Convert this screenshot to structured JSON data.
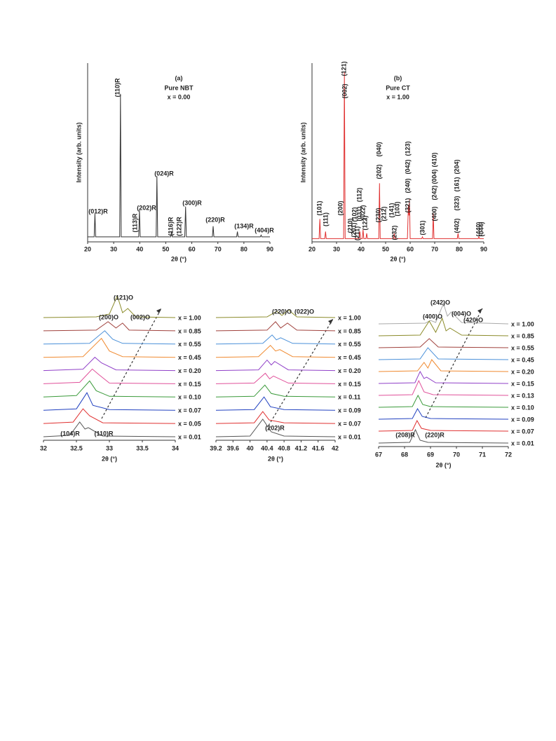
{
  "chart_data": [
    {
      "type": "line",
      "title": "(a)",
      "subtitle": "Pure NBT",
      "note": "x = 0.00",
      "x_label": "2θ (°)",
      "y_label": "Intensity (arb. units)",
      "color": "#333333",
      "x": [
        20,
        22.5,
        22.8,
        23.1,
        32.3,
        32.6,
        32.9,
        39.6,
        39.9,
        40.2,
        46.3,
        46.6,
        46.9,
        51.9,
        52.2,
        52.5,
        57.3,
        57.6,
        57.9,
        67.9,
        68.2,
        68.5,
        77.2,
        77.5,
        77.8,
        86.3,
        86.6,
        86.9,
        90
      ],
      "values": [
        2,
        2,
        15,
        2,
        2,
        82,
        2,
        2,
        17,
        2,
        2,
        36,
        2,
        2,
        5,
        2,
        2,
        19,
        2,
        2,
        8,
        2,
        2,
        5,
        2,
        2,
        3,
        2,
        2
      ],
      "xlim": [
        20,
        90
      ],
      "ylim": [
        0,
        100
      ],
      "xticks": [
        20,
        30,
        40,
        50,
        60,
        70,
        80,
        90
      ],
      "annotations": [
        "(012)R",
        "(110)R",
        "(202)R",
        "(113)R",
        "(024)R",
        "(116)R",
        "(122)R",
        "(300)R",
        "(220)R",
        "(134)R",
        "(404)R"
      ]
    },
    {
      "type": "line",
      "title": "(b)",
      "subtitle": "Pure CT",
      "note": "x = 1.00",
      "x_label": "2θ (°)",
      "y_label": "Intensity (arb. units)",
      "color": "#e03030",
      "x": [
        20,
        22.9,
        23.2,
        23.5,
        25.2,
        25.5,
        25.8,
        32.9,
        33.2,
        33.5,
        39.2,
        39.5,
        39.8,
        40.5,
        40.8,
        41.1,
        42,
        42.3,
        42.6,
        47.2,
        47.5,
        47.8,
        53.2,
        53.5,
        53.8,
        58.9,
        59.3,
        59.5,
        59.7,
        60,
        64.7,
        65,
        65.3,
        69.1,
        69.4,
        69.7,
        79.2,
        79.5,
        79.8,
        87.7,
        88,
        88.3,
        90
      ],
      "values": [
        1,
        1,
        12,
        1,
        1,
        5,
        1,
        1,
        94,
        1,
        1,
        5,
        1,
        1,
        6,
        1,
        1,
        4,
        1,
        1,
        32,
        1,
        1,
        4,
        1,
        1,
        20,
        14,
        23,
        1,
        1,
        2,
        1,
        1,
        15,
        1,
        1,
        4,
        1,
        1,
        2,
        1,
        1
      ],
      "xlim": [
        20,
        90
      ],
      "ylim": [
        0,
        100
      ],
      "xticks": [
        20,
        30,
        40,
        50,
        60,
        70,
        80,
        90
      ],
      "annotations": [
        "(101)",
        "(111)",
        "(200)",
        "(002)",
        "(121)",
        "(210)",
        "(201)",
        "(102)",
        "(211)",
        "(031)",
        "(112)",
        "(022)",
        "(122)",
        "(202)",
        "(040)",
        "(230)",
        "(212)",
        "(141)",
        "(103)",
        "(232)",
        "(321)",
        "(240)",
        "(042)",
        "(123)",
        "(301)",
        "(400)",
        "(242)",
        "(004)",
        "(410)",
        "(402)",
        "(323)",
        "(161)",
        "(204)",
        "(440)",
        "(044)"
      ]
    },
    {
      "type": "line",
      "x_label": "2θ (°)",
      "xlim": [
        32,
        34
      ],
      "ylim": [
        0,
        200
      ],
      "xticks": [
        32,
        32.5,
        33,
        33.5,
        34
      ],
      "annotations": [
        "(121)O",
        "(200)O",
        "(002)O",
        "(104)R",
        "(110)R"
      ],
      "series": [
        {
          "name": "x = 1.00",
          "color": "#8b8b2a",
          "x": [
            32,
            32.8,
            33.0,
            33.12,
            33.2,
            33.28,
            33.4,
            34
          ],
          "values": [
            1,
            2,
            6,
            32,
            8,
            14,
            2,
            1
          ]
        },
        {
          "name": "x = 0.85",
          "color": "#a0413c",
          "x": [
            32,
            32.8,
            32.98,
            33.1,
            33.2,
            33.3,
            34
          ],
          "values": [
            1,
            2,
            14,
            5,
            12,
            2,
            1
          ]
        },
        {
          "name": "x = 0.55",
          "color": "#4a90d9",
          "x": [
            32,
            32.7,
            32.93,
            33.05,
            33.2,
            34
          ],
          "values": [
            1,
            2,
            20,
            8,
            2,
            1
          ]
        },
        {
          "name": "x = 0.45",
          "color": "#f08a30",
          "x": [
            32,
            32.6,
            32.88,
            33.0,
            33.2,
            34
          ],
          "values": [
            1,
            2,
            28,
            10,
            2,
            1
          ]
        },
        {
          "name": "x = 0.20",
          "color": "#9040c8",
          "x": [
            32,
            32.6,
            32.78,
            32.88,
            33.1,
            34
          ],
          "values": [
            1,
            3,
            20,
            12,
            2,
            1
          ]
        },
        {
          "name": "x = 0.15",
          "color": "#e0509a",
          "x": [
            32,
            32.55,
            32.74,
            32.84,
            33.0,
            34
          ],
          "values": [
            1,
            3,
            22,
            14,
            2,
            1
          ]
        },
        {
          "name": "x = 0.10",
          "color": "#3a9a3a",
          "x": [
            32,
            32.5,
            32.7,
            32.8,
            33,
            34
          ],
          "values": [
            1,
            3,
            24,
            10,
            2,
            1
          ]
        },
        {
          "name": "x = 0.07",
          "color": "#2040c0",
          "x": [
            32,
            32.5,
            32.66,
            32.75,
            33,
            34
          ],
          "values": [
            1,
            3,
            26,
            8,
            2,
            1
          ]
        },
        {
          "name": "x = 0.05",
          "color": "#e03030",
          "x": [
            32,
            32.45,
            32.6,
            32.7,
            32.9,
            34
          ],
          "values": [
            1,
            3,
            22,
            12,
            2,
            1
          ]
        },
        {
          "name": "x = 0.01",
          "color": "#555555",
          "x": [
            32,
            32.4,
            32.55,
            32.63,
            32.68,
            32.9,
            34
          ],
          "values": [
            1,
            3,
            22,
            12,
            14,
            2,
            1
          ]
        }
      ]
    },
    {
      "type": "line",
      "x_label": "2θ (°)",
      "xlim": [
        39.2,
        42
      ],
      "ylim": [
        0,
        200
      ],
      "xticks": [
        39.2,
        39.6,
        40,
        40.4,
        40.8,
        41.2,
        41.6,
        42
      ],
      "annotations": [
        "(220)O",
        "(022)O",
        "(202)R"
      ],
      "series": [
        {
          "name": "x = 1.00",
          "color": "#8b8b2a",
          "x": [
            39.2,
            40.4,
            40.63,
            40.75,
            40.9,
            41.1,
            42
          ],
          "values": [
            1,
            2,
            10,
            4,
            12,
            2,
            1
          ]
        },
        {
          "name": "x = 0.85",
          "color": "#a0413c",
          "x": [
            39.2,
            40.4,
            40.6,
            40.72,
            40.88,
            41.1,
            42
          ],
          "values": [
            1,
            2,
            14,
            5,
            12,
            2,
            1
          ]
        },
        {
          "name": "x = 0.55",
          "color": "#4a90d9",
          "x": [
            39.2,
            40.3,
            40.52,
            40.62,
            40.72,
            41,
            42
          ],
          "values": [
            1,
            2,
            14,
            7,
            10,
            2,
            1
          ]
        },
        {
          "name": "x = 0.45",
          "color": "#f08a30",
          "x": [
            39.2,
            40.2,
            40.48,
            40.6,
            40.7,
            41,
            42
          ],
          "values": [
            1,
            2,
            18,
            10,
            12,
            2,
            1
          ]
        },
        {
          "name": "x = 0.20",
          "color": "#9040c8",
          "x": [
            39.2,
            40.2,
            40.4,
            40.5,
            40.58,
            40.9,
            42
          ],
          "values": [
            1,
            2,
            16,
            9,
            14,
            2,
            1
          ]
        },
        {
          "name": "x = 0.15",
          "color": "#e0509a",
          "x": [
            39.2,
            40.1,
            40.36,
            40.46,
            40.55,
            40.9,
            42
          ],
          "values": [
            1,
            2,
            16,
            8,
            12,
            2,
            1
          ]
        },
        {
          "name": "x = 0.11",
          "color": "#3a9a3a",
          "x": [
            39.2,
            40.1,
            40.35,
            40.5,
            40.8,
            42
          ],
          "values": [
            1,
            2,
            18,
            6,
            2,
            1
          ]
        },
        {
          "name": "x = 0.09",
          "color": "#2040c0",
          "x": [
            39.2,
            40.1,
            40.33,
            40.48,
            40.8,
            42
          ],
          "values": [
            1,
            2,
            20,
            6,
            2,
            1
          ]
        },
        {
          "name": "x = 0.07",
          "color": "#e03030",
          "x": [
            39.2,
            40.1,
            40.3,
            40.45,
            40.8,
            42
          ],
          "values": [
            1,
            2,
            18,
            6,
            2,
            1
          ]
        },
        {
          "name": "x = 0.01",
          "color": "#555555",
          "x": [
            39.2,
            40.0,
            40.3,
            40.5,
            40.8,
            42
          ],
          "values": [
            1,
            2,
            26,
            8,
            2,
            1
          ]
        }
      ]
    },
    {
      "type": "line",
      "x_label": "2θ (°)",
      "xlim": [
        67,
        72
      ],
      "ylim": [
        0,
        200
      ],
      "xticks": [
        67,
        68,
        69,
        70,
        71,
        72
      ],
      "annotations": [
        "(242)O",
        "(400)O",
        "(004)O",
        "(420)O",
        "(208)R",
        "(220)R"
      ],
      "series": [
        {
          "name": "x = 1.00",
          "color": "#aaaaaa",
          "x": [
            67,
            68.8,
            69.0,
            69.2,
            69.5,
            69.65,
            69.8,
            70.2,
            72
          ],
          "values": [
            1,
            2,
            6,
            3,
            30,
            12,
            18,
            3,
            1
          ]
        },
        {
          "name": "x = 0.85",
          "color": "#8b8b2a",
          "x": [
            67,
            68.6,
            68.95,
            69.2,
            69.45,
            69.6,
            69.75,
            70.2,
            72
          ],
          "values": [
            1,
            2,
            22,
            6,
            26,
            8,
            12,
            2,
            1
          ]
        },
        {
          "name": "x = 0.55",
          "color": "#a0413c",
          "x": [
            67,
            68.6,
            68.95,
            69.3,
            72
          ],
          "values": [
            1,
            2,
            14,
            2,
            1
          ]
        },
        {
          "name": "x = 0.45",
          "color": "#4a90d9",
          "x": [
            67,
            68.6,
            68.9,
            69.3,
            72
          ],
          "values": [
            1,
            2,
            18,
            2,
            1
          ]
        },
        {
          "name": "x = 0.20",
          "color": "#f08a30",
          "x": [
            67,
            68.5,
            68.75,
            68.9,
            69.05,
            69.4,
            72
          ],
          "values": [
            1,
            2,
            14,
            6,
            18,
            2,
            1
          ]
        },
        {
          "name": "x = 0.15",
          "color": "#9040c8",
          "x": [
            67,
            68.4,
            68.6,
            68.75,
            68.85,
            69.2,
            72
          ],
          "values": [
            1,
            2,
            18,
            8,
            10,
            2,
            1
          ]
        },
        {
          "name": "x = 0.13",
          "color": "#e0509a",
          "x": [
            67,
            68.3,
            68.55,
            68.75,
            69.1,
            72
          ],
          "values": [
            1,
            2,
            22,
            6,
            2,
            1
          ]
        },
        {
          "name": "x = 0.10",
          "color": "#3a9a3a",
          "x": [
            67,
            68.3,
            68.52,
            68.7,
            69,
            72
          ],
          "values": [
            1,
            2,
            18,
            5,
            2,
            1
          ]
        },
        {
          "name": "x = 0.09",
          "color": "#2040c0",
          "x": [
            67,
            68.3,
            68.5,
            68.68,
            69,
            72
          ],
          "values": [
            1,
            2,
            16,
            5,
            2,
            1
          ]
        },
        {
          "name": "x = 0.07",
          "color": "#e03030",
          "x": [
            67,
            68.3,
            68.48,
            68.65,
            69,
            72
          ],
          "values": [
            1,
            2,
            16,
            5,
            2,
            1
          ]
        },
        {
          "name": "x = 0.01",
          "color": "#555555",
          "x": [
            67,
            68.2,
            68.42,
            68.6,
            68.9,
            72
          ],
          "values": [
            1,
            2,
            20,
            5,
            2,
            1
          ]
        }
      ]
    }
  ]
}
